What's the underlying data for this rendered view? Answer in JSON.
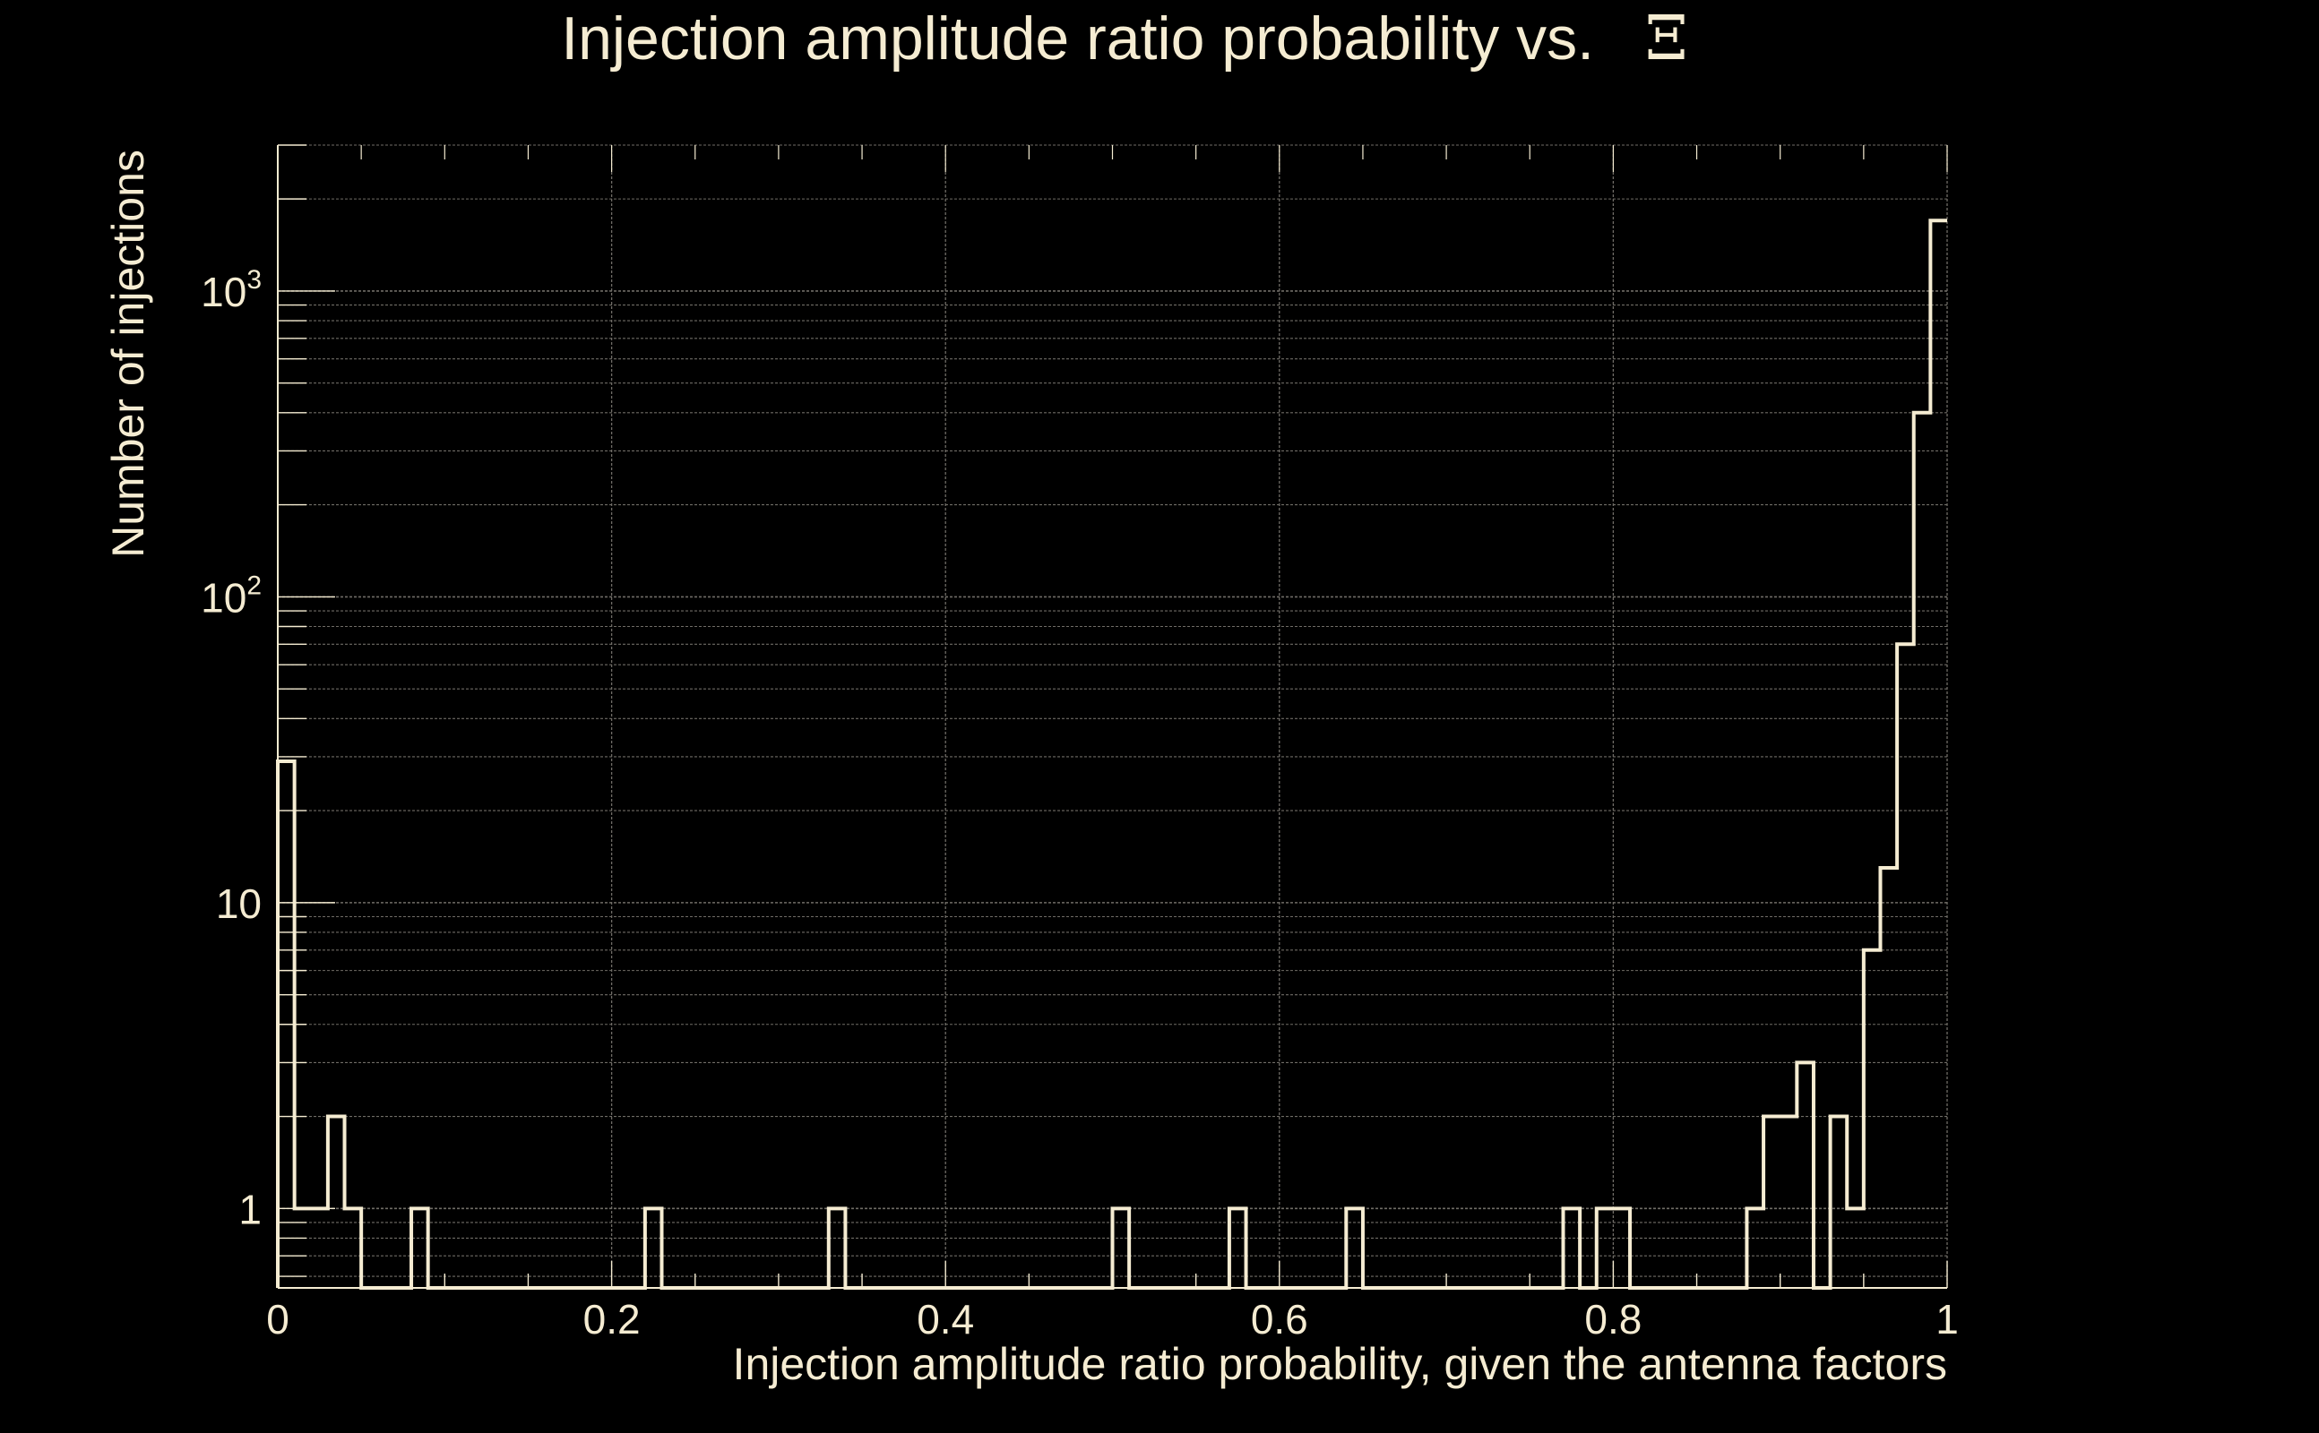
{
  "colors": {
    "background": "#000000",
    "foreground": "#f5ecd2",
    "grid": "#6f6c66"
  },
  "chart_data": {
    "type": "bar",
    "title": "Injection amplitude ratio probability vs.",
    "title_symbol": "Ξ",
    "xlabel": "Injection amplitude ratio probability, given the antenna factors",
    "ylabel": "Number of injections",
    "xlim": [
      0,
      1
    ],
    "ylim": [
      0.55,
      3000
    ],
    "yscale": "log",
    "grid": true,
    "legend": "none",
    "x_ticks": [
      {
        "value": 0,
        "label": "0"
      },
      {
        "value": 0.2,
        "label": "0.2"
      },
      {
        "value": 0.4,
        "label": "0.4"
      },
      {
        "value": 0.6,
        "label": "0.6"
      },
      {
        "value": 0.8,
        "label": "0.8"
      },
      {
        "value": 1,
        "label": "1"
      }
    ],
    "y_ticks": [
      {
        "value": 1,
        "label": "1",
        "sup": ""
      },
      {
        "value": 10,
        "label": "10",
        "sup": ""
      },
      {
        "value": 100,
        "label": "10",
        "sup": "2"
      },
      {
        "value": 1000,
        "label": "10",
        "sup": "3"
      }
    ],
    "bin_width": 0.01,
    "bins": [
      {
        "x": 0.0,
        "count": 29
      },
      {
        "x": 0.01,
        "count": 1
      },
      {
        "x": 0.02,
        "count": 1
      },
      {
        "x": 0.03,
        "count": 2
      },
      {
        "x": 0.04,
        "count": 1
      },
      {
        "x": 0.08,
        "count": 1
      },
      {
        "x": 0.22,
        "count": 1
      },
      {
        "x": 0.33,
        "count": 1
      },
      {
        "x": 0.5,
        "count": 1
      },
      {
        "x": 0.57,
        "count": 1
      },
      {
        "x": 0.64,
        "count": 1
      },
      {
        "x": 0.77,
        "count": 1
      },
      {
        "x": 0.79,
        "count": 1
      },
      {
        "x": 0.8,
        "count": 1
      },
      {
        "x": 0.88,
        "count": 1
      },
      {
        "x": 0.89,
        "count": 2
      },
      {
        "x": 0.9,
        "count": 2
      },
      {
        "x": 0.91,
        "count": 3
      },
      {
        "x": 0.93,
        "count": 2
      },
      {
        "x": 0.94,
        "count": 1
      },
      {
        "x": 0.95,
        "count": 7
      },
      {
        "x": 0.96,
        "count": 13
      },
      {
        "x": 0.97,
        "count": 70
      },
      {
        "x": 0.98,
        "count": 400
      },
      {
        "x": 0.99,
        "count": 1700
      }
    ]
  }
}
